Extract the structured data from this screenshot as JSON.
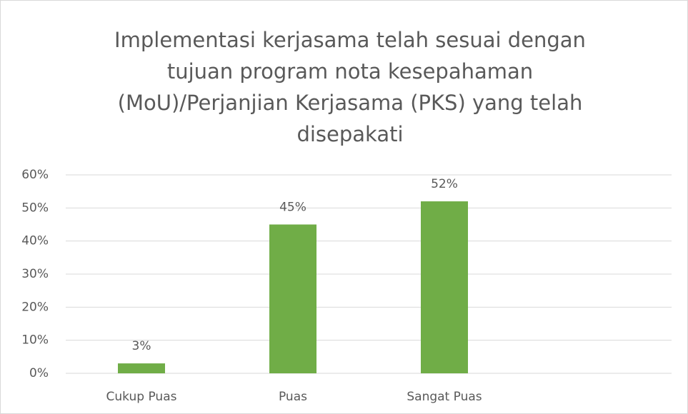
{
  "chart_data": {
    "type": "bar",
    "title": "Implementasi kerjasama telah sesuai dengan tujuan program nota kesepahaman (MoU)/Perjanjian Kerjasama (PKS) yang telah disepakati",
    "categories": [
      "Cukup Puas",
      "Puas",
      "Sangat Puas",
      null
    ],
    "values": [
      3,
      45,
      52,
      null
    ],
    "value_labels": [
      "3%",
      "45%",
      "52%",
      null
    ],
    "color": "#70ad47",
    "ylim": [
      0,
      60
    ],
    "yticks": [
      {
        "value": 0,
        "label": "0%"
      },
      {
        "value": 10,
        "label": "10%"
      },
      {
        "value": 20,
        "label": "20%"
      },
      {
        "value": 30,
        "label": "30%"
      },
      {
        "value": 40,
        "label": "40%"
      },
      {
        "value": 50,
        "label": "50%"
      },
      {
        "value": 60,
        "label": "60%"
      }
    ],
    "grid": true
  }
}
